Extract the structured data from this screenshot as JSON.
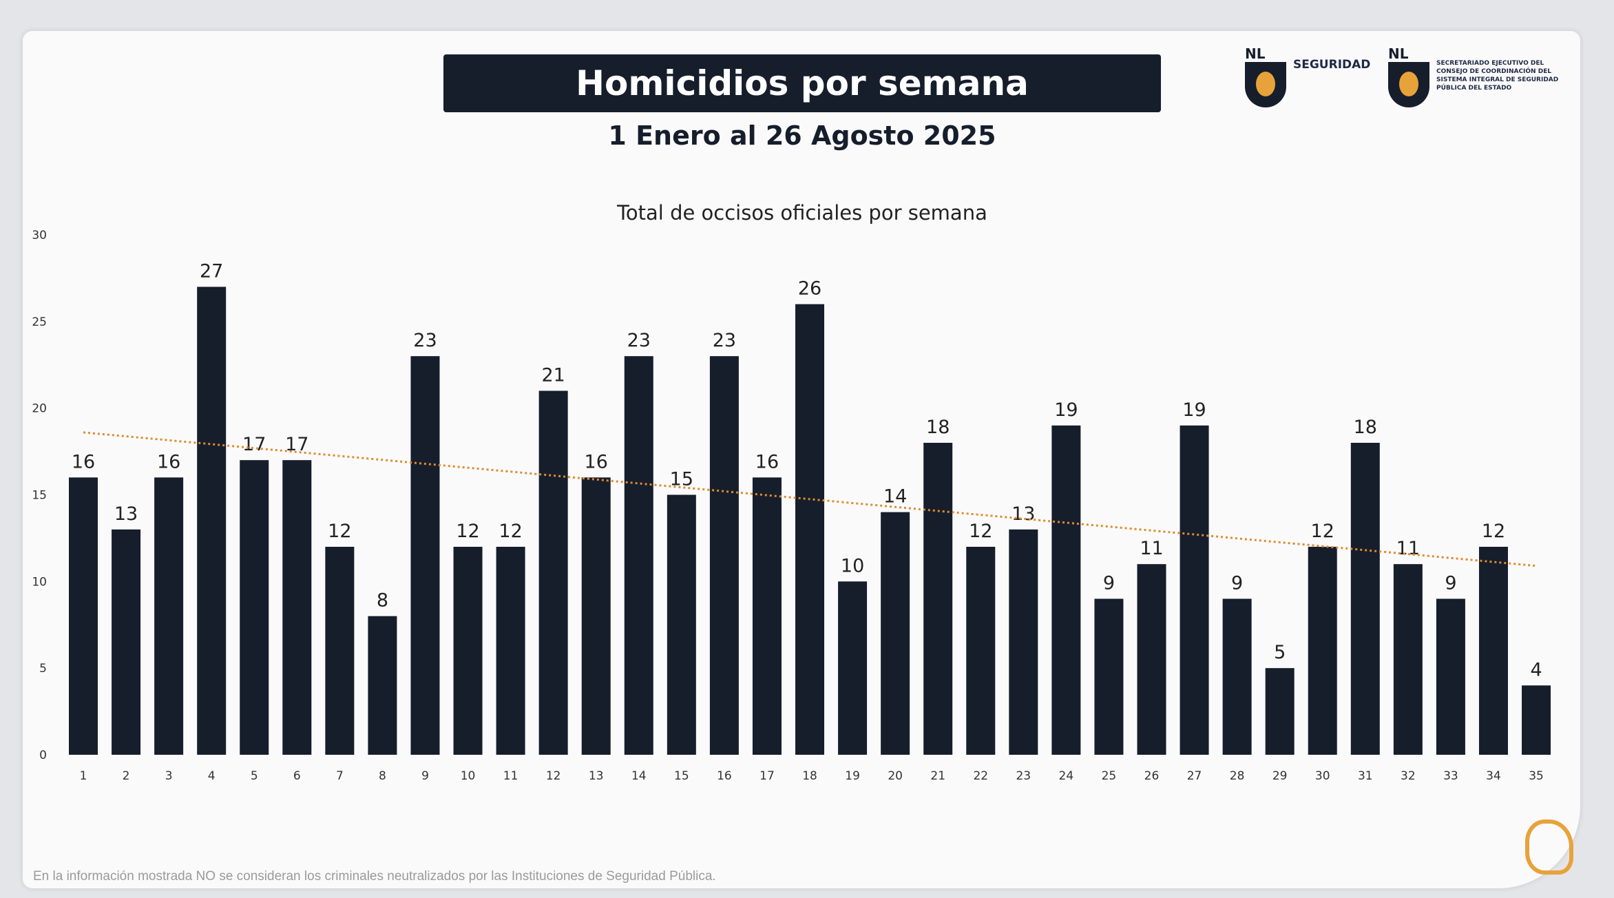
{
  "header": {
    "title": "Homicidios por semana",
    "subtitle": "1 Enero al 26 Agosto 2025"
  },
  "logos": [
    {
      "mark": "NL",
      "text": "SEGURIDAD"
    },
    {
      "mark": "NL",
      "text": "SECRETARIADO EJECUTIVO DEL CONSEJO DE COORDINACIÓN DEL SISTEMA INTEGRAL DE SEGURIDAD PÚBLICA DEL ESTADO"
    }
  ],
  "footer": {
    "note": "En la información mostrada NO se consideran los criminales neutralizados por las Instituciones de Seguridad Pública."
  },
  "colors": {
    "bar": "#161e2c",
    "trend": "#e08a2e",
    "accent": "#e8a23a"
  },
  "chart_data": {
    "type": "bar",
    "title": "Total de occisos oficiales por semana",
    "xlabel": "",
    "ylabel": "",
    "ylim": [
      0,
      30
    ],
    "yticks": [
      0,
      5,
      10,
      15,
      20,
      25,
      30
    ],
    "categories": [
      "1",
      "2",
      "3",
      "4",
      "5",
      "6",
      "7",
      "8",
      "9",
      "10",
      "11",
      "12",
      "13",
      "14",
      "15",
      "16",
      "17",
      "18",
      "19",
      "20",
      "21",
      "22",
      "23",
      "24",
      "25",
      "26",
      "27",
      "28",
      "29",
      "30",
      "31",
      "32",
      "33",
      "34",
      "35"
    ],
    "values": [
      16,
      13,
      16,
      27,
      17,
      17,
      12,
      8,
      23,
      12,
      12,
      21,
      16,
      23,
      15,
      23,
      16,
      26,
      10,
      14,
      18,
      12,
      13,
      19,
      9,
      11,
      19,
      9,
      5,
      12,
      18,
      11,
      9,
      12,
      4
    ],
    "trendline": {
      "type": "linear",
      "start": 18.6,
      "end": 10.9
    },
    "grid": false,
    "legend": "none"
  }
}
